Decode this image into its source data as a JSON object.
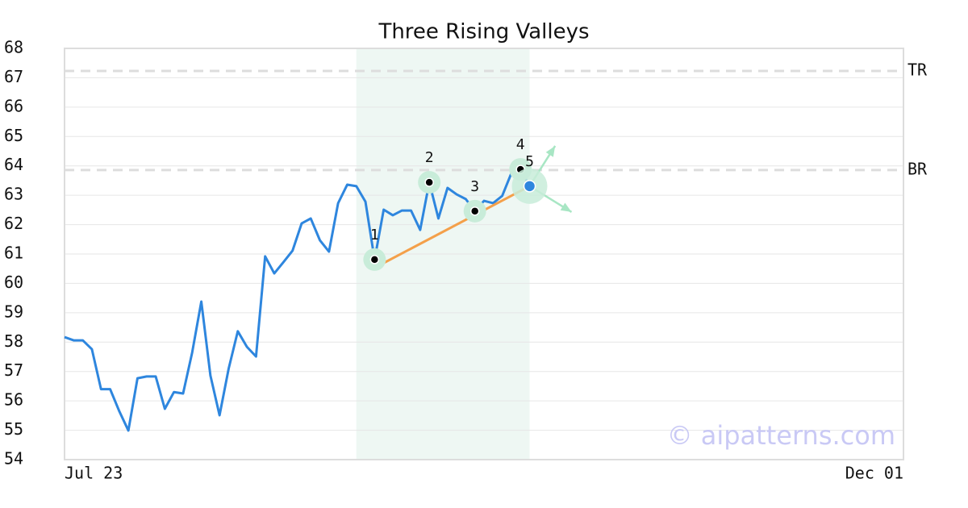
{
  "chart_data": {
    "type": "line",
    "title": "Three Rising Valleys",
    "x": [
      0,
      1,
      2,
      3,
      4,
      5,
      6,
      7,
      8,
      9,
      10,
      11,
      12,
      13,
      14,
      15,
      16,
      17,
      18,
      19,
      20,
      21,
      22,
      23,
      24,
      25,
      26,
      27,
      28,
      29,
      30,
      31,
      32,
      33,
      34,
      35,
      36,
      37,
      38,
      39,
      40,
      41,
      42,
      43,
      44,
      45,
      46,
      47,
      48,
      49,
      50,
      51
    ],
    "series": [
      {
        "color": "#2e86de",
        "values": [
          58.17,
          58.06,
          58.06,
          57.76,
          56.4,
          56.4,
          55.65,
          54.99,
          56.77,
          56.83,
          56.83,
          55.73,
          56.3,
          56.25,
          57.65,
          59.38,
          56.86,
          55.51,
          57.1,
          58.37,
          57.84,
          57.51,
          60.92,
          60.34,
          60.72,
          61.11,
          62.04,
          62.21,
          61.47,
          61.08,
          62.73,
          63.36,
          63.31,
          62.78,
          60.81,
          62.51,
          62.32,
          62.48,
          62.48,
          61.82,
          63.44,
          62.21,
          63.25,
          63.03,
          62.87,
          62.46,
          62.81,
          62.73,
          62.98,
          63.75,
          63.88,
          63.31
        ]
      }
    ],
    "xlim": [
      0,
      92
    ],
    "xticks": [
      {
        "value": 0,
        "label": "Jul 23"
      },
      {
        "value": 92,
        "label": "Dec 01"
      }
    ],
    "ylim": [
      54,
      68
    ],
    "yticks": [
      54,
      55,
      56,
      57,
      58,
      59,
      60,
      61,
      62,
      63,
      64,
      65,
      66,
      67,
      68
    ],
    "grid": true,
    "levels": [
      {
        "label": "TR",
        "value": 67.23
      },
      {
        "label": "BR",
        "value": 63.86
      }
    ],
    "highlight_range": [
      32,
      51
    ],
    "pattern_points": {
      "x": [
        34,
        40,
        45,
        50,
        51
      ],
      "values": [
        60.81,
        63.44,
        62.46,
        63.88,
        63.31
      ],
      "labels": [
        "1",
        "2",
        "3",
        "4",
        "5"
      ]
    },
    "trendline": {
      "color": "#f4a04a",
      "x": [
        34,
        51
      ],
      "values": [
        60.53,
        63.31
      ]
    },
    "arrows": {
      "x": [
        53.8,
        55.6
      ],
      "values": [
        64.68,
        62.43
      ]
    },
    "watermark": "© aipatterns.com"
  }
}
